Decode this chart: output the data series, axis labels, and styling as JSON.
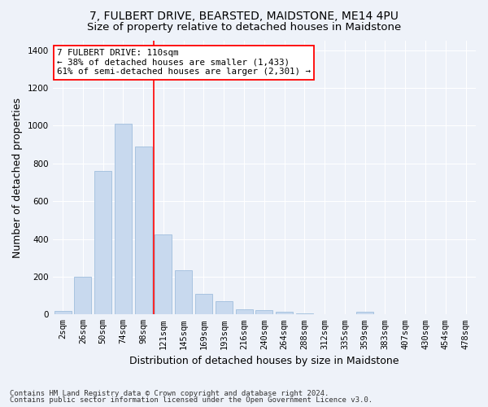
{
  "title": "7, FULBERT DRIVE, BEARSTED, MAIDSTONE, ME14 4PU",
  "subtitle": "Size of property relative to detached houses in Maidstone",
  "xlabel": "Distribution of detached houses by size in Maidstone",
  "ylabel": "Number of detached properties",
  "bar_color": "#c8d9ee",
  "bar_edge_color": "#a0bedd",
  "background_color": "#eef2f9",
  "annotation_text_line1": "7 FULBERT DRIVE: 110sqm",
  "annotation_text_line2": "← 38% of detached houses are smaller (1,433)",
  "annotation_text_line3": "61% of semi-detached houses are larger (2,301) →",
  "footer_line1": "Contains HM Land Registry data © Crown copyright and database right 2024.",
  "footer_line2": "Contains public sector information licensed under the Open Government Licence v3.0.",
  "categories": [
    "2sqm",
    "26sqm",
    "50sqm",
    "74sqm",
    "98sqm",
    "121sqm",
    "145sqm",
    "169sqm",
    "193sqm",
    "216sqm",
    "240sqm",
    "264sqm",
    "288sqm",
    "312sqm",
    "335sqm",
    "359sqm",
    "383sqm",
    "407sqm",
    "430sqm",
    "454sqm",
    "478sqm"
  ],
  "values": [
    20,
    200,
    760,
    1010,
    890,
    425,
    235,
    110,
    70,
    28,
    25,
    15,
    5,
    0,
    0,
    15,
    0,
    0,
    0,
    0,
    0
  ],
  "ylim": [
    0,
    1450
  ],
  "yticks": [
    0,
    200,
    400,
    600,
    800,
    1000,
    1200,
    1400
  ],
  "red_line_index": 4.5,
  "title_fontsize": 10,
  "subtitle_fontsize": 9.5,
  "axis_label_fontsize": 9,
  "tick_fontsize": 7.5,
  "footer_fontsize": 6.5
}
